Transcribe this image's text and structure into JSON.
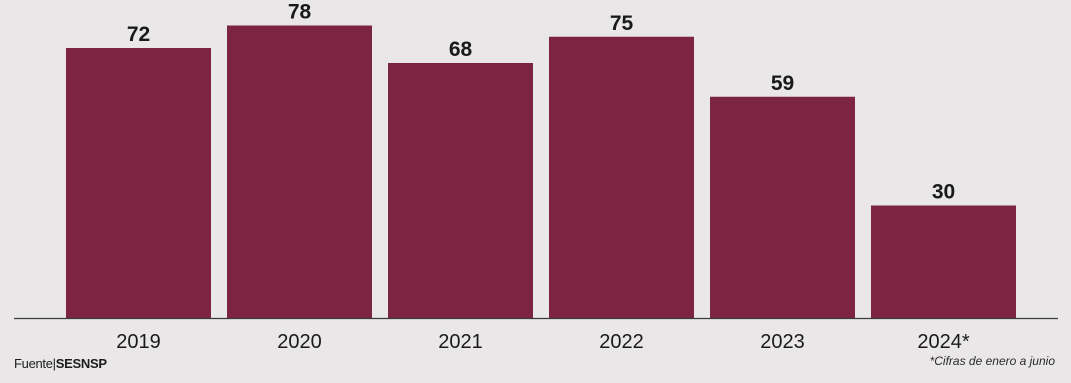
{
  "chart_data": {
    "type": "bar",
    "categories": [
      "2019",
      "2020",
      "2021",
      "2022",
      "2023",
      "2024*"
    ],
    "values": [
      72,
      78,
      68,
      75,
      59,
      30
    ],
    "ylim": [
      0,
      80
    ],
    "bar_color": "#7d2442",
    "label_color": "#1a1a1a",
    "axis_color": "#3a3a3a",
    "grid": false
  },
  "footer": {
    "source_label": "Fuente|",
    "source_name": "SESNSP",
    "footnote": "*Cifras de enero a junio"
  }
}
